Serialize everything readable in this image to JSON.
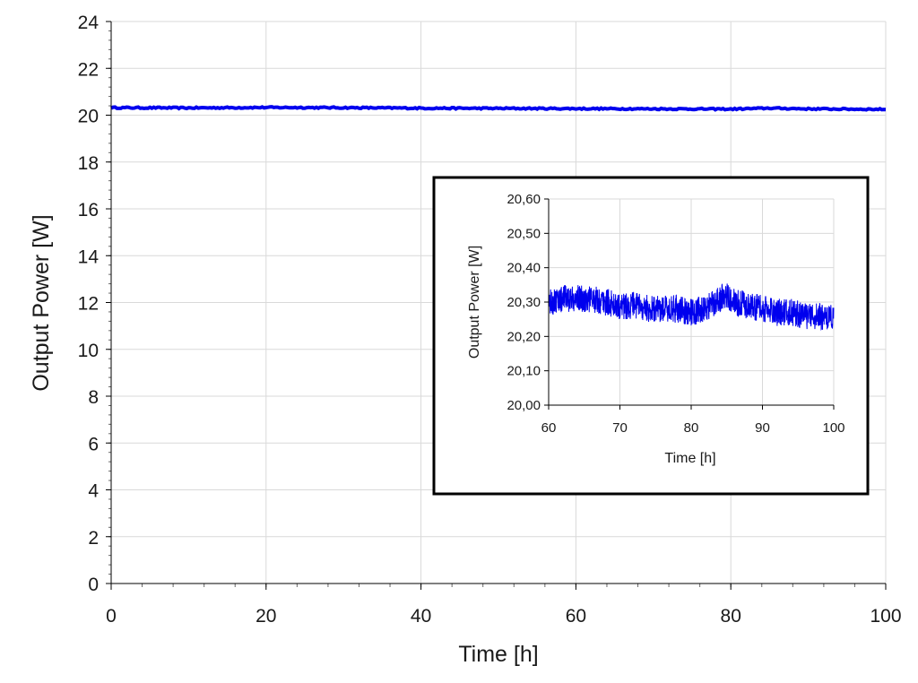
{
  "colors": {
    "series": "#0000ee",
    "grid": "#d9d9d9",
    "axis": "#000000",
    "text": "#1a1a1a",
    "inset_frame": "#000000"
  },
  "chart_data": [
    {
      "id": "main",
      "type": "line",
      "title": "",
      "xlabel": "Time [h]",
      "ylabel": "Output Power [W]",
      "xlim": [
        0,
        100
      ],
      "ylim": [
        0,
        24
      ],
      "x_ticks": [
        "0",
        "20",
        "40",
        "60",
        "80",
        "100"
      ],
      "y_ticks": [
        "0",
        "2",
        "4",
        "6",
        "8",
        "10",
        "12",
        "14",
        "16",
        "18",
        "20",
        "22",
        "24"
      ],
      "grid": true,
      "legend": "none",
      "series": [
        {
          "x": [
            0,
            10,
            20,
            30,
            40,
            50,
            60,
            70,
            80,
            85,
            90,
            100
          ],
          "y": [
            20.32,
            20.31,
            20.33,
            20.32,
            20.3,
            20.29,
            20.28,
            20.27,
            20.26,
            20.3,
            20.27,
            20.25
          ]
        }
      ]
    },
    {
      "id": "inset",
      "type": "line",
      "title": "",
      "xlabel": "Time [h]",
      "ylabel": "Output Power [W]",
      "xlim": [
        60,
        100
      ],
      "ylim": [
        20.0,
        20.6
      ],
      "x_ticks": [
        "60",
        "70",
        "80",
        "90",
        "100"
      ],
      "y_ticks": [
        "20,00",
        "20,10",
        "20,20",
        "20,30",
        "20,40",
        "20,50",
        "20,60"
      ],
      "grid": true,
      "legend": "none",
      "series": [
        {
          "x": [
            60,
            62,
            64,
            66,
            68,
            70,
            72,
            74,
            76,
            78,
            80,
            82,
            84,
            85,
            86,
            88,
            90,
            92,
            94,
            96,
            98,
            100
          ],
          "y": [
            20.3,
            20.31,
            20.31,
            20.31,
            20.3,
            20.29,
            20.29,
            20.28,
            20.28,
            20.28,
            20.27,
            20.28,
            20.31,
            20.32,
            20.3,
            20.29,
            20.28,
            20.27,
            20.27,
            20.26,
            20.26,
            20.25
          ],
          "noise_band": 0.04
        }
      ]
    }
  ]
}
